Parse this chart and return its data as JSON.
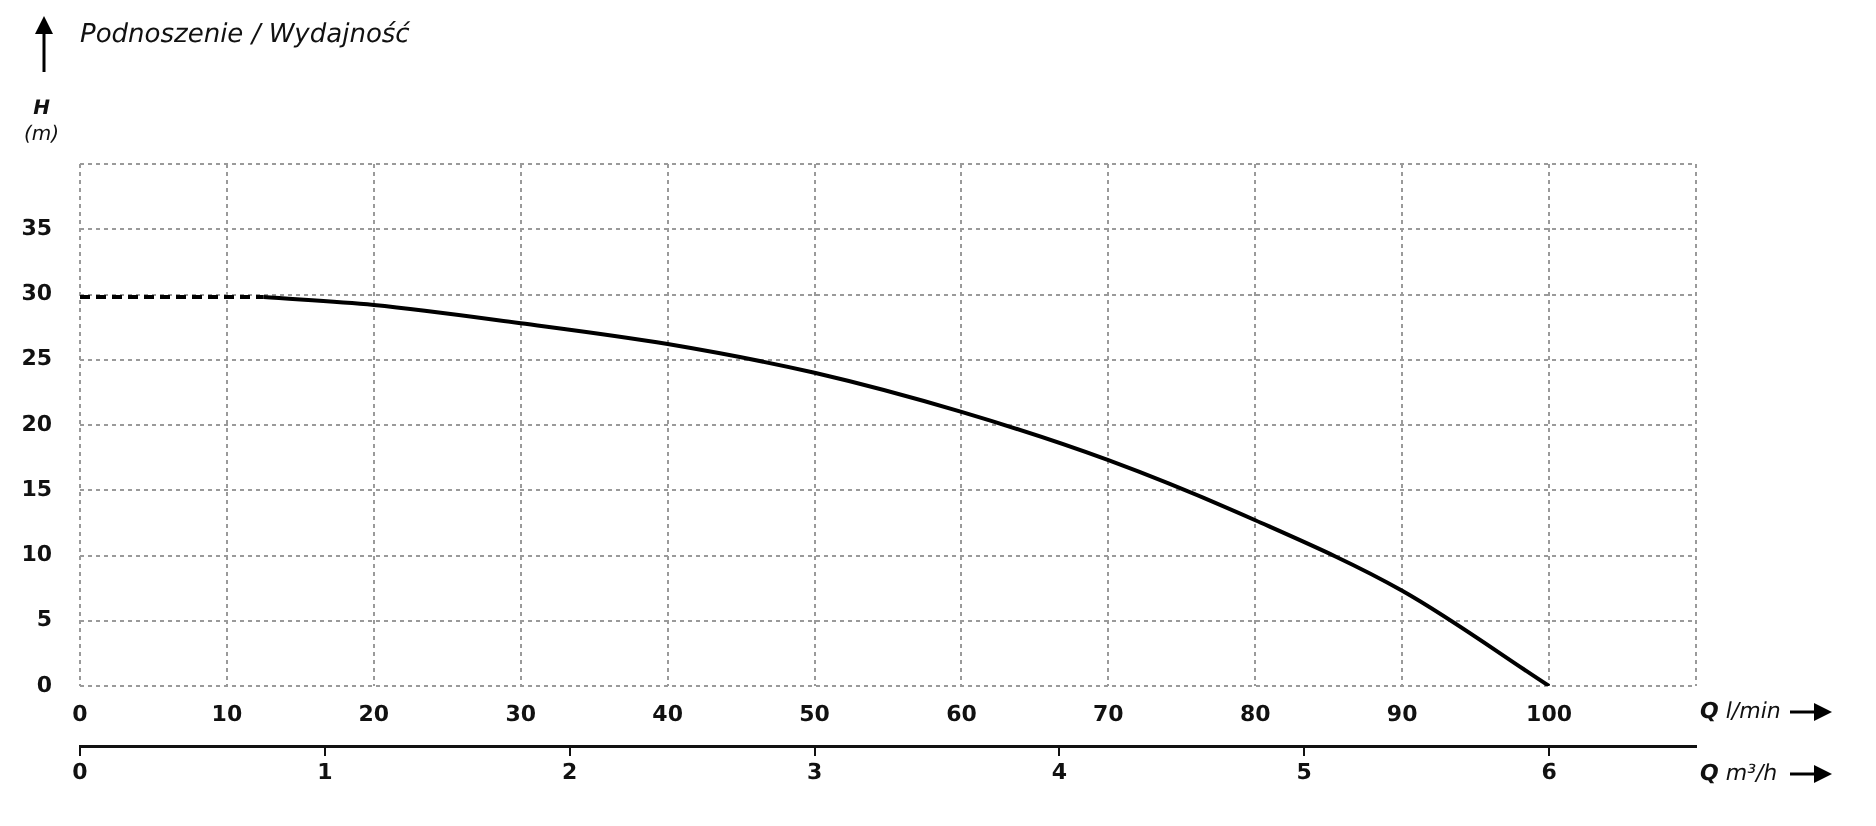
{
  "chart_data": {
    "type": "line",
    "title": "Podnoszenie / Wydajność",
    "ylabel": "H (m)",
    "xlabel": "Q l/min",
    "x2label": "Q m³/h",
    "xlim": [
      0,
      110
    ],
    "xticks": [
      0,
      10,
      20,
      30,
      40,
      50,
      60,
      70,
      80,
      90,
      100,
      {
        "value": 110,
        "label": null
      }
    ],
    "ylim": [
      0,
      40
    ],
    "yticks": [
      0,
      5,
      10,
      15,
      20,
      25,
      30,
      35,
      {
        "value": 40,
        "label": null
      }
    ],
    "x2lim": [
      0,
      6.6
    ],
    "x2ticks": [
      0,
      1,
      2,
      3,
      4,
      5,
      6
    ],
    "grid": true,
    "legend": false,
    "marker": "none",
    "line_style": "solid",
    "series": [
      {
        "color": "#000000",
        "line_style": "dashed",
        "x": [
          0,
          12.5
        ],
        "values": [
          29.8,
          29.8
        ]
      },
      {
        "color": "#000000",
        "x": [
          12.5,
          20,
          30,
          40,
          50,
          60,
          70,
          80,
          90,
          100
        ],
        "values": [
          29.8,
          29.2,
          27.8,
          26.2,
          24.0,
          21.0,
          17.3,
          12.7,
          7.3,
          0
        ]
      }
    ]
  }
}
